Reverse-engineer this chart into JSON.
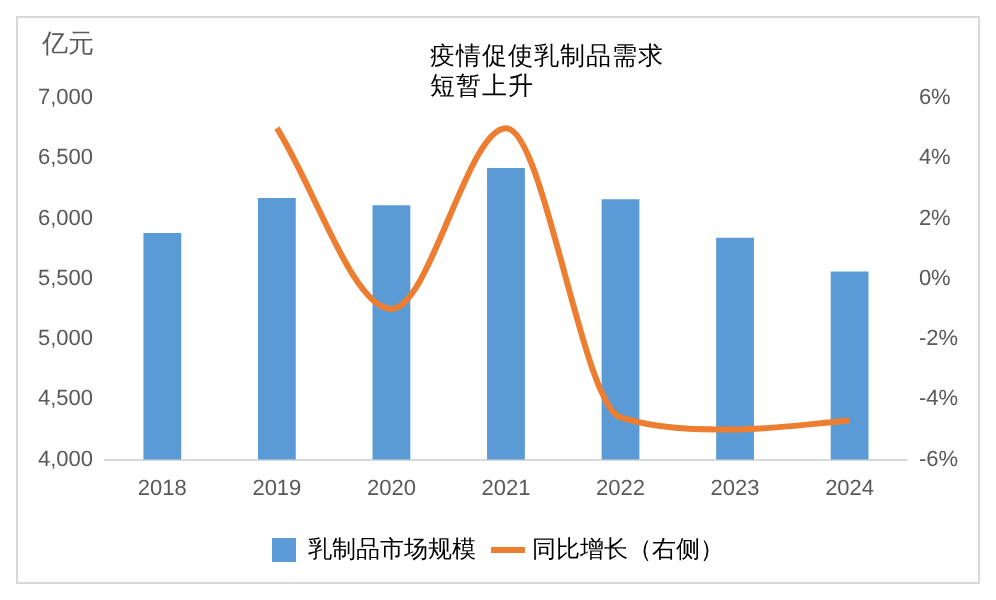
{
  "chart_data": {
    "type": "bar",
    "ylabel": "亿元",
    "categories": [
      "2018",
      "2019",
      "2020",
      "2021",
      "2022",
      "2023",
      "2024"
    ],
    "series": [
      {
        "name": "乳制品市场规模",
        "color": "#5b9bd5",
        "values": [
          5880,
          6170,
          6110,
          6420,
          6160,
          5840,
          5560
        ]
      },
      {
        "name": "同比增长（右侧）",
        "type": "line",
        "axis": "y2",
        "color": "#ed7d31",
        "values": [
          null,
          5.0,
          -1.0,
          5.0,
          -4.6,
          -5.0,
          -4.7
        ]
      }
    ],
    "ylim": [
      4000,
      7000
    ],
    "yticks": [
      {
        "value": 4000,
        "label": "4,000"
      },
      {
        "value": 4500,
        "label": "4,500"
      },
      {
        "value": 5000,
        "label": "5,000"
      },
      {
        "value": 5500,
        "label": "5,500"
      },
      {
        "value": 6000,
        "label": "6,000"
      },
      {
        "value": 6500,
        "label": "6,500"
      },
      {
        "value": 7000,
        "label": "7,000"
      }
    ],
    "y2lim": [
      -6,
      6
    ],
    "y2ticks": [
      {
        "value": -6,
        "label": "-6%"
      },
      {
        "value": -4,
        "label": "-4%"
      },
      {
        "value": -2,
        "label": "-2%"
      },
      {
        "value": 0,
        "label": "0%"
      },
      {
        "value": 2,
        "label": "2%"
      },
      {
        "value": 4,
        "label": "4%"
      },
      {
        "value": 6,
        "label": "6%"
      }
    ],
    "annotations": [
      "疫情促使乳制品需求短暂上升"
    ],
    "grid": false,
    "legend": "bottom",
    "marker": "none",
    "line_style": "solid"
  }
}
